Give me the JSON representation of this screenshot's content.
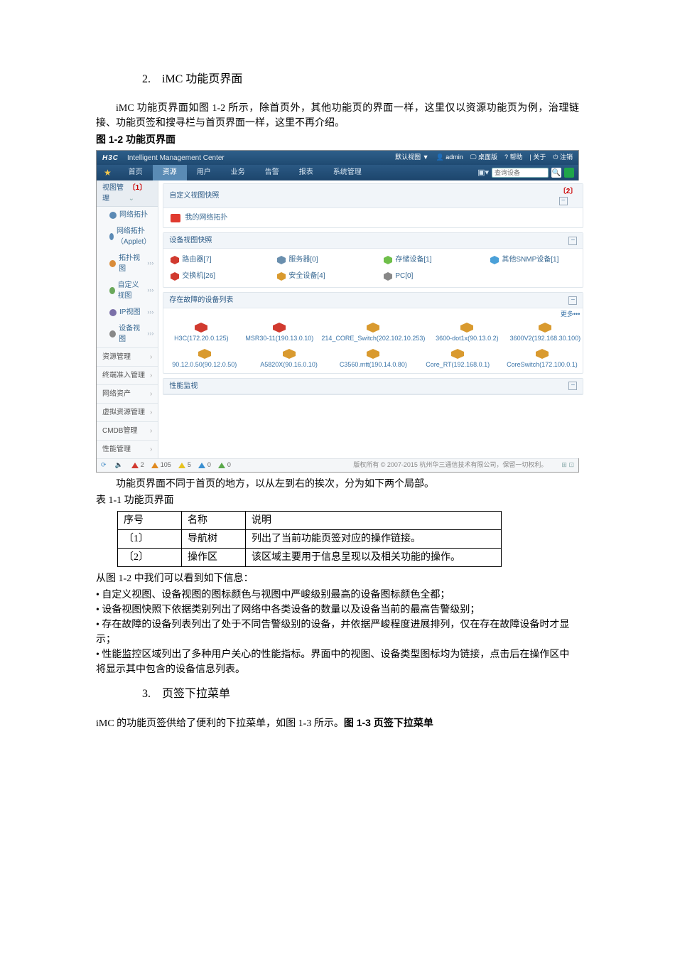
{
  "section2_title": "2.　iMC 功能页界面",
  "intro_para": "iMC 功能页界面如图 1-2 所示，除首页外，其他功能页的界面一样，这里仅以资源功能页为例，治理链接、功能页签和搜寻栏与首页界面一样，这里不再介绍。",
  "fig12_caption": "图 1-2 功能页界面",
  "imc": {
    "brand": "H3C",
    "subtitle": "Intelligent Management Center",
    "top_right": {
      "view": "默认视图 ▼",
      "user": "admin",
      "desktop": "桌面版",
      "help": "帮助",
      "about": "关于",
      "logout": "注销"
    },
    "nav": [
      "首页",
      "资源",
      "用户",
      "业务",
      "告警",
      "报表",
      "系统管理"
    ],
    "nav_active_index": 1,
    "search_placeholder": "查询设备",
    "side_head": "视图管理",
    "side_head_num": "〔1〕",
    "side_items": [
      {
        "label": "网络拓扑",
        "icon_color": "#5b8ab5"
      },
      {
        "label": "网络拓扑（Applet）",
        "icon_color": "#5b8ab5"
      },
      {
        "label": "拓扑视图",
        "icon_color": "#d98c3a",
        "suffix": "›››"
      },
      {
        "label": "自定义视图",
        "icon_color": "#6aa85a",
        "suffix": "›››"
      },
      {
        "label": "IP视图",
        "icon_color": "#7a6fa8",
        "suffix": "›››"
      },
      {
        "label": "设备视图",
        "icon_color": "#888",
        "suffix": "›››"
      }
    ],
    "side_cats": [
      "资源管理",
      "终端准入管理",
      "网络资产",
      "虚拟资源管理",
      "CMDB管理",
      "性能管理"
    ],
    "panel_custom": "自定义视图快照",
    "panel_custom_num": "〔2〕",
    "my_view": "我的网络拓扑",
    "panel_devsnap": "设备视图快照",
    "dev_types_row1": [
      {
        "label": "路由器[7]",
        "color": "#d13a2f"
      },
      {
        "label": "服务器[0]",
        "color": "#6a8fae"
      },
      {
        "label": "存储设备[1]",
        "color": "#6fbf4a"
      },
      {
        "label": "其他SNMP设备[1]",
        "color": "#4aa0d8"
      }
    ],
    "dev_types_row2": [
      {
        "label": "交换机[26]",
        "color": "#d13a2f"
      },
      {
        "label": "安全设备[4]",
        "color": "#d99a2f"
      },
      {
        "label": "PC[0]",
        "color": "#888"
      }
    ],
    "panel_fault": "存在故障的设备列表",
    "more": "更多•••",
    "fault_row1": [
      {
        "label": "H3C(172.20.0.125)",
        "color": "#d13a2f"
      },
      {
        "label": "MSR30-11(190.13.0.10)",
        "color": "#d13a2f"
      },
      {
        "label": "214_CORE_Switch(202.102.10.253)",
        "color": "#d99a2f"
      },
      {
        "label": "3600-dot1x(90.13.0.2)",
        "color": "#d99a2f"
      },
      {
        "label": "3600V2(192.168.30.100)",
        "color": "#d99a2f"
      }
    ],
    "fault_row2": [
      {
        "label": "90.12.0.50(90.12.0.50)",
        "color": "#d99a2f"
      },
      {
        "label": "A5820X(90.16.0.10)",
        "color": "#d99a2f"
      },
      {
        "label": "C3560.mtt(190.14.0.80)",
        "color": "#d99a2f"
      },
      {
        "label": "Core_RT(192.168.0.1)",
        "color": "#d99a2f"
      },
      {
        "label": "CoreSwitch(172.100.0.1)",
        "color": "#d99a2f"
      }
    ],
    "panel_perf": "性能监视",
    "foot_alarms": [
      {
        "color": "#d13a2f",
        "shape": "tri",
        "value": "2"
      },
      {
        "color": "#e08a1f",
        "shape": "tri",
        "value": "105"
      },
      {
        "color": "#e8c21f",
        "shape": "tri",
        "value": "5"
      },
      {
        "color": "#3a8fd1",
        "shape": "tri",
        "value": "0"
      },
      {
        "color": "#5aa84a",
        "shape": "tri",
        "value": "0"
      }
    ],
    "copyright": "版权所有 © 2007-2015 杭州华三通信技术有限公司，保留一切权利。"
  },
  "after_fig_para": "功能页界面不同于首页的地方，以从左到右的挨次，分为如下两个局部。",
  "table_caption": "表 1-1 功能页界面",
  "table": {
    "headers": [
      "序号",
      "名称",
      "说明"
    ],
    "rows": [
      [
        "〔1〕",
        "导航树",
        "列出了当前功能页签对应的操作链接。"
      ],
      [
        "〔2〕",
        "操作区",
        "该区域主要用于信息呈现以及相关功能的操作。"
      ]
    ]
  },
  "post_table_intro": "从图 1-2 中我们可以看到如下信息：",
  "bullets": [
    "自定义视图、设备视图的图标颜色与视图中严峻级别最高的设备图标颜色全都；",
    "设备视图快照下依据类别列出了网络中各类设备的数量以及设备当前的最高告警级别；",
    "存在故障的设备列表列出了处于不同告警级别的设备，并依据严峻程度进展排列，仅在存在故障设备时才显示；",
    "性能监控区域列出了多种用户关心的性能指标。界面中的视图、设备类型图标均为链接，点击后在操作区中将显示其中包含的设备信息列表。"
  ],
  "section3_title": "3.　页签下拉菜单",
  "section3_para": "iMC 的功能页签供给了便利的下拉菜单，如图 1-3 所示。",
  "fig13_caption": "图 1-3 页签下拉菜单"
}
